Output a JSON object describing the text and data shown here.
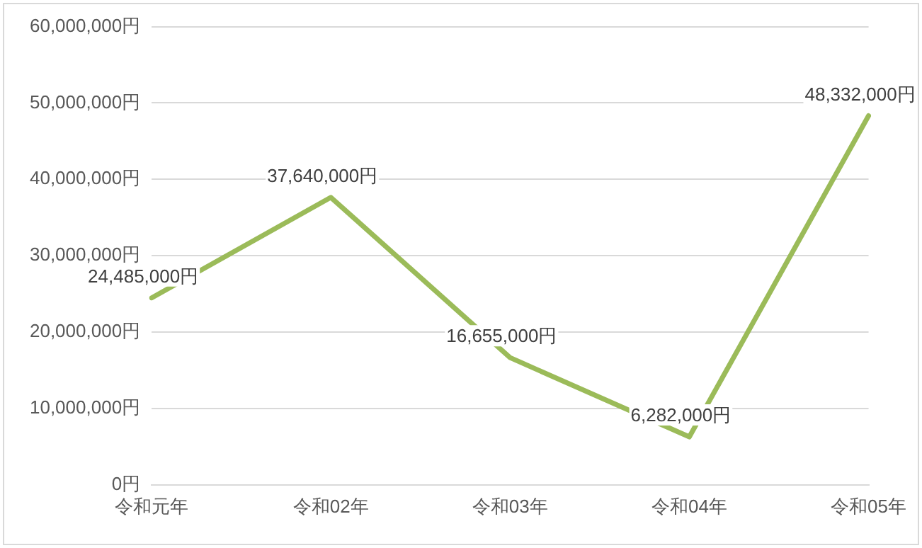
{
  "chart_data": {
    "type": "line",
    "categories": [
      "令和元年",
      "令和02年",
      "令和03年",
      "令和04年",
      "令和05年"
    ],
    "series": [
      {
        "color": "#9bbb59",
        "values": [
          24485000,
          37640000,
          16655000,
          6282000,
          48332000
        ],
        "value_labels": [
          "24,485,000円",
          "37,640,000円",
          "16,655,000円",
          "6,282,000円",
          "48,332,000円"
        ]
      }
    ],
    "ylim": [
      0,
      60000000
    ],
    "yticks": [
      {
        "value": 0,
        "label": "0円"
      },
      {
        "value": 10000000,
        "label": "10,000,000円"
      },
      {
        "value": 20000000,
        "label": "20,000,000円"
      },
      {
        "value": 30000000,
        "label": "30,000,000円"
      },
      {
        "value": 40000000,
        "label": "40,000,000円"
      },
      {
        "value": 50000000,
        "label": "50,000,000円"
      },
      {
        "value": 60000000,
        "label": "60,000,000円"
      }
    ],
    "grid": "y",
    "legend": false,
    "marker": "none",
    "line_style": "solid"
  }
}
